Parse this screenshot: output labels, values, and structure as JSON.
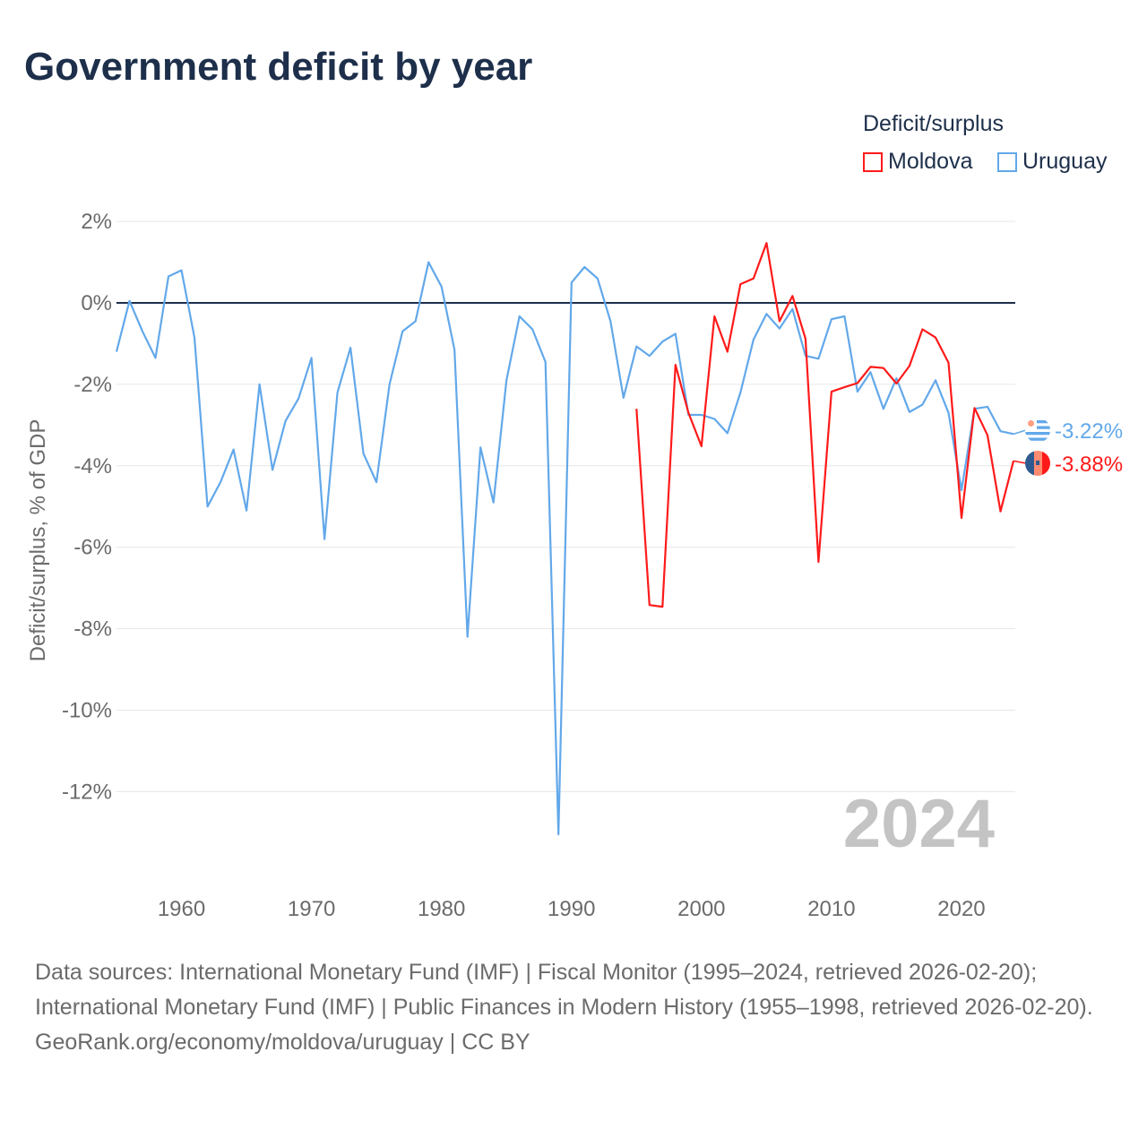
{
  "title": "Government deficit by year",
  "legend": {
    "title": "Deficit/surplus",
    "items": [
      {
        "label": "Moldova",
        "color": "#ff1a1a"
      },
      {
        "label": "Uruguay",
        "color": "#62a8ea"
      }
    ]
  },
  "footer": {
    "sources": "Data sources: International Monetary Fund (IMF) | Fiscal Monitor (1995–2024, retrieved 2026-02-20); International Monetary Fund (IMF) | Public Finances in Modern History (1955–1998, retrieved 2026-02-20).",
    "credit": "GeoRank.org/economy/moldova/uruguay | CC BY"
  },
  "chart_data": {
    "type": "line",
    "title": "Government deficit by year",
    "ylabel": "Deficit/surplus, % of GDP",
    "xlabel": "",
    "xlim": [
      1955,
      2024
    ],
    "ylim": [
      -13.5,
      2.2
    ],
    "yticks": [
      2,
      0,
      -2,
      -4,
      -6,
      -8,
      -10,
      -12
    ],
    "ytick_labels": [
      "2%",
      "0%",
      "-2%",
      "-4%",
      "-6%",
      "-8%",
      "-10%",
      "-12%"
    ],
    "xticks": [
      1960,
      1970,
      1980,
      1990,
      2000,
      2010,
      2020
    ],
    "xtick_labels": [
      "1960",
      "1970",
      "1980",
      "1990",
      "2000",
      "2010",
      "2020"
    ],
    "year_label": "2024",
    "grid": true,
    "legend_position": "top-right",
    "series": [
      {
        "name": "Uruguay",
        "color": "#62a8ea",
        "start_year": 1955,
        "end_label": "-3.22%",
        "values": [
          -1.2,
          0.05,
          -0.7,
          -1.35,
          0.65,
          0.8,
          -0.85,
          -5.0,
          -4.4,
          -3.6,
          -5.1,
          -2.0,
          -4.1,
          -2.9,
          -2.35,
          -1.35,
          -5.8,
          -2.2,
          -1.1,
          -3.7,
          -4.4,
          -2.0,
          -0.7,
          -0.45,
          1.0,
          0.4,
          -1.15,
          -8.2,
          -3.55,
          -4.9,
          -1.9,
          -0.33,
          -0.65,
          -1.45,
          -13.05,
          0.5,
          0.88,
          0.6,
          -0.45,
          -2.33,
          -1.07,
          -1.3,
          -0.95,
          -0.76,
          -2.75,
          -2.75,
          -2.85,
          -3.2,
          -2.2,
          -0.9,
          -0.27,
          -0.63,
          -0.15,
          -1.3,
          -1.37,
          -0.4,
          -0.33,
          -2.18,
          -1.7,
          -2.6,
          -1.85,
          -2.68,
          -2.5,
          -1.9,
          -2.7,
          -4.6,
          -2.6,
          -2.55,
          -3.15,
          -3.22
        ]
      },
      {
        "name": "Moldova",
        "color": "#ff1a1a",
        "start_year": 1995,
        "end_label": "-3.88%",
        "values": [
          -2.6,
          -7.42,
          -7.46,
          -1.52,
          -2.7,
          -3.52,
          -0.33,
          -1.2,
          0.46,
          0.6,
          1.47,
          -0.45,
          0.17,
          -0.88,
          -6.36,
          -2.18,
          -2.07,
          -1.97,
          -1.57,
          -1.6,
          -1.98,
          -1.55,
          -0.65,
          -0.85,
          -1.47,
          -5.28,
          -2.58,
          -3.25,
          -5.12,
          -3.88
        ]
      }
    ]
  }
}
